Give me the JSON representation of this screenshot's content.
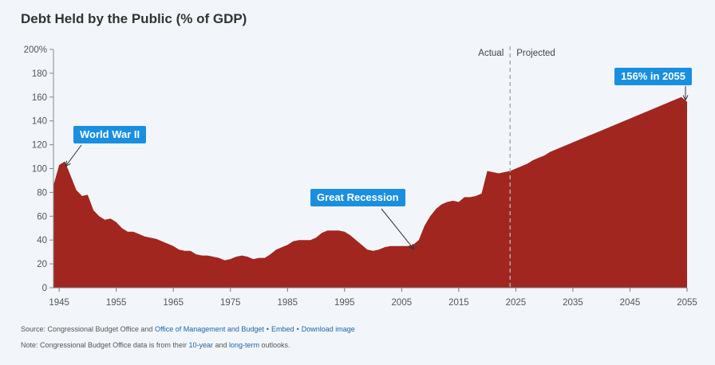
{
  "page": {
    "title": "Debt Held by the Public (% of GDP)"
  },
  "colors": {
    "area": "#a12620",
    "callout_bg": "#1a8fe0",
    "link": "#1f63a8",
    "divider": "#aaaaaa"
  },
  "labels": {
    "actual": "Actual",
    "projected": "Projected"
  },
  "callouts": [
    {
      "id": "wwii",
      "text": "World War II",
      "year": 1946,
      "value": 106
    },
    {
      "id": "recession",
      "text": "Great Recession",
      "year": 2007,
      "value": 35
    },
    {
      "id": "y2055",
      "text": "156% in 2055",
      "year": 2055,
      "value": 156
    }
  ],
  "footer": {
    "source_prefix": "Source: Congressional Budget Office and ",
    "omb_link": "Office of Management and Budget",
    "embed_link": "Embed",
    "download_link": "Download image",
    "bullet": "•",
    "note_prefix": "Note: Congressional Budget Office data is from their ",
    "ten_year_link": "10-year",
    "note_mid": " and ",
    "long_term_link": "long-term",
    "note_suffix": " outlooks."
  },
  "chart_data": {
    "type": "area",
    "title": "Debt Held by the Public (% of GDP)",
    "xlabel": "",
    "ylabel": "",
    "xlim": [
      1944,
      2055
    ],
    "ylim": [
      0,
      200
    ],
    "divider_year": 2024,
    "x_ticks": [
      1945,
      1955,
      1965,
      1975,
      1985,
      1995,
      2005,
      2015,
      2025,
      2035,
      2045,
      2055
    ],
    "y_ticks": [
      {
        "value": 0,
        "label": "0"
      },
      {
        "value": 20,
        "label": "20"
      },
      {
        "value": 40,
        "label": "40"
      },
      {
        "value": 60,
        "label": "60"
      },
      {
        "value": 80,
        "label": "80"
      },
      {
        "value": 100,
        "label": "100"
      },
      {
        "value": 120,
        "label": "120"
      },
      {
        "value": 140,
        "label": "140"
      },
      {
        "value": 160,
        "label": "160"
      },
      {
        "value": 180,
        "label": "180"
      },
      {
        "value": 200,
        "label": "200%"
      }
    ],
    "series": [
      {
        "name": "Debt held by the public (% of GDP)",
        "x": [
          1944,
          1945,
          1946,
          1947,
          1948,
          1949,
          1950,
          1951,
          1952,
          1953,
          1954,
          1955,
          1956,
          1957,
          1958,
          1959,
          1960,
          1961,
          1962,
          1963,
          1964,
          1965,
          1966,
          1967,
          1968,
          1969,
          1970,
          1971,
          1972,
          1973,
          1974,
          1975,
          1976,
          1977,
          1978,
          1979,
          1980,
          1981,
          1982,
          1983,
          1984,
          1985,
          1986,
          1987,
          1988,
          1989,
          1990,
          1991,
          1992,
          1993,
          1994,
          1995,
          1996,
          1997,
          1998,
          1999,
          2000,
          2001,
          2002,
          2003,
          2004,
          2005,
          2006,
          2007,
          2008,
          2009,
          2010,
          2011,
          2012,
          2013,
          2014,
          2015,
          2016,
          2017,
          2018,
          2019,
          2020,
          2021,
          2022,
          2023,
          2024,
          2025,
          2026,
          2027,
          2028,
          2029,
          2030,
          2031,
          2032,
          2033,
          2034,
          2035,
          2036,
          2037,
          2038,
          2039,
          2040,
          2041,
          2042,
          2043,
          2044,
          2045,
          2046,
          2047,
          2048,
          2049,
          2050,
          2051,
          2052,
          2053,
          2054,
          2055
        ],
        "values": [
          86,
          103,
          106,
          94,
          82,
          77,
          78,
          65,
          60,
          57,
          58,
          55,
          50,
          47,
          47,
          45,
          43,
          42,
          41,
          39,
          37,
          35,
          32,
          31,
          31,
          28,
          27,
          27,
          26,
          25,
          23,
          24,
          26,
          27,
          26,
          24,
          25,
          25,
          28,
          32,
          34,
          36,
          39,
          40,
          40,
          40,
          42,
          46,
          48,
          48,
          48,
          47,
          44,
          40,
          36,
          32,
          31,
          32,
          34,
          35,
          35,
          35,
          35,
          36,
          40,
          52,
          60,
          66,
          70,
          72,
          73,
          72,
          76,
          76,
          77,
          79,
          98,
          97,
          96,
          97,
          98,
          100,
          102,
          104,
          107,
          109,
          111,
          114,
          116,
          118,
          120,
          122,
          124,
          126,
          128,
          130,
          132,
          134,
          136,
          138,
          140,
          142,
          144,
          146,
          148,
          150,
          152,
          154,
          156,
          158,
          160,
          156
        ]
      }
    ]
  }
}
